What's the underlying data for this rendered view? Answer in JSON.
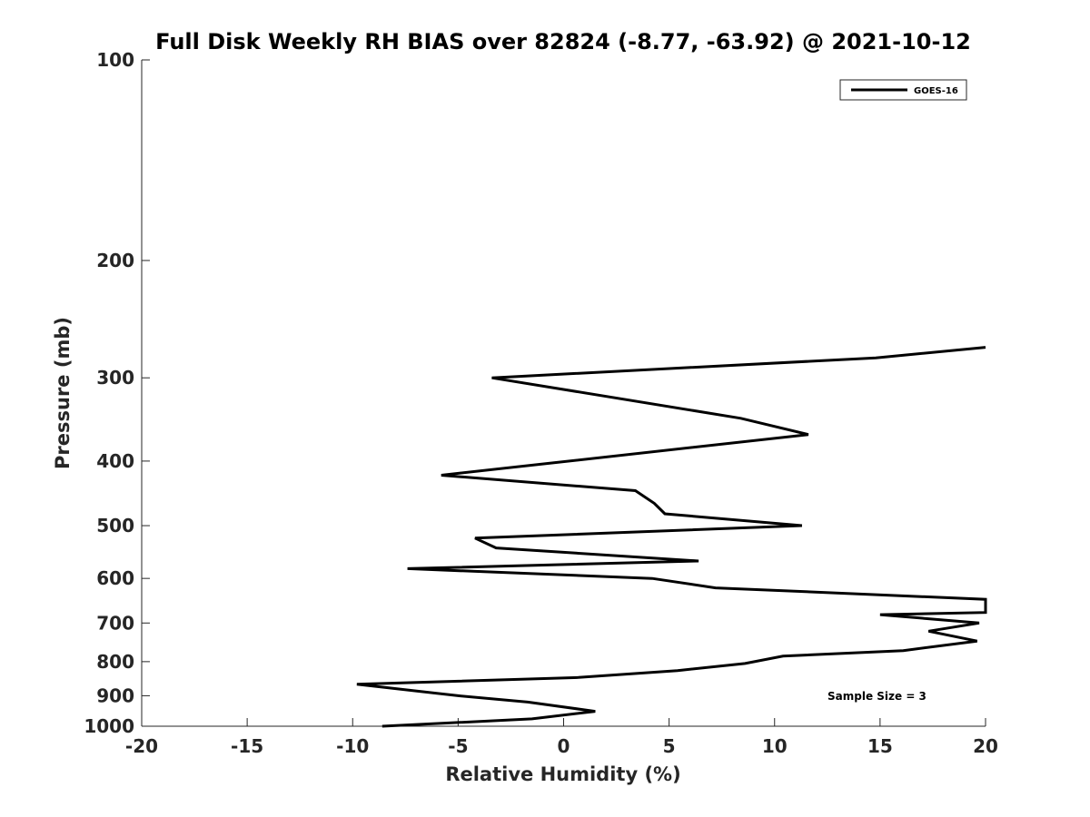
{
  "chart_data": {
    "type": "line",
    "title": "Full Disk Weekly RH BIAS over 82824 (-8.77, -63.92) @ 2021-10-12",
    "xlabel": "Relative Humidity (%)",
    "ylabel": "Pressure (mb)",
    "xlim": [
      -20,
      20
    ],
    "ylim": [
      1000,
      100
    ],
    "yscale": "log",
    "y_reversed": true,
    "x_ticks": [
      -20,
      -15,
      -10,
      -5,
      0,
      5,
      10,
      15,
      20
    ],
    "y_ticks": [
      100,
      200,
      300,
      400,
      500,
      600,
      700,
      800,
      900,
      1000
    ],
    "grid": false,
    "legend": {
      "position": "top-right",
      "entries": [
        "GOES-16"
      ]
    },
    "annotation": "Sample Size = 3",
    "series": [
      {
        "name": "GOES-16",
        "color": "#000000",
        "points": [
          [
            20.0,
            270
          ],
          [
            14.8,
            280
          ],
          [
            -3.4,
            300
          ],
          [
            8.4,
            345
          ],
          [
            11.6,
            365
          ],
          [
            -5.8,
            420
          ],
          [
            3.4,
            443
          ],
          [
            4.3,
            463
          ],
          [
            4.8,
            480
          ],
          [
            11.3,
            500
          ],
          [
            -4.2,
            522
          ],
          [
            -3.2,
            540
          ],
          [
            6.4,
            565
          ],
          [
            -7.4,
            580
          ],
          [
            4.2,
            600
          ],
          [
            7.2,
            620
          ],
          [
            20.0,
            645
          ],
          [
            20.0,
            675
          ],
          [
            15.0,
            680
          ],
          [
            19.7,
            700
          ],
          [
            17.3,
            720
          ],
          [
            19.6,
            745
          ],
          [
            16.1,
            770
          ],
          [
            10.4,
            785
          ],
          [
            8.6,
            805
          ],
          [
            5.4,
            825
          ],
          [
            0.7,
            845
          ],
          [
            -9.8,
            865
          ],
          [
            -5.0,
            900
          ],
          [
            -1.7,
            920
          ],
          [
            1.5,
            950
          ],
          [
            -1.5,
            975
          ],
          [
            -8.6,
            1000
          ]
        ]
      }
    ]
  }
}
